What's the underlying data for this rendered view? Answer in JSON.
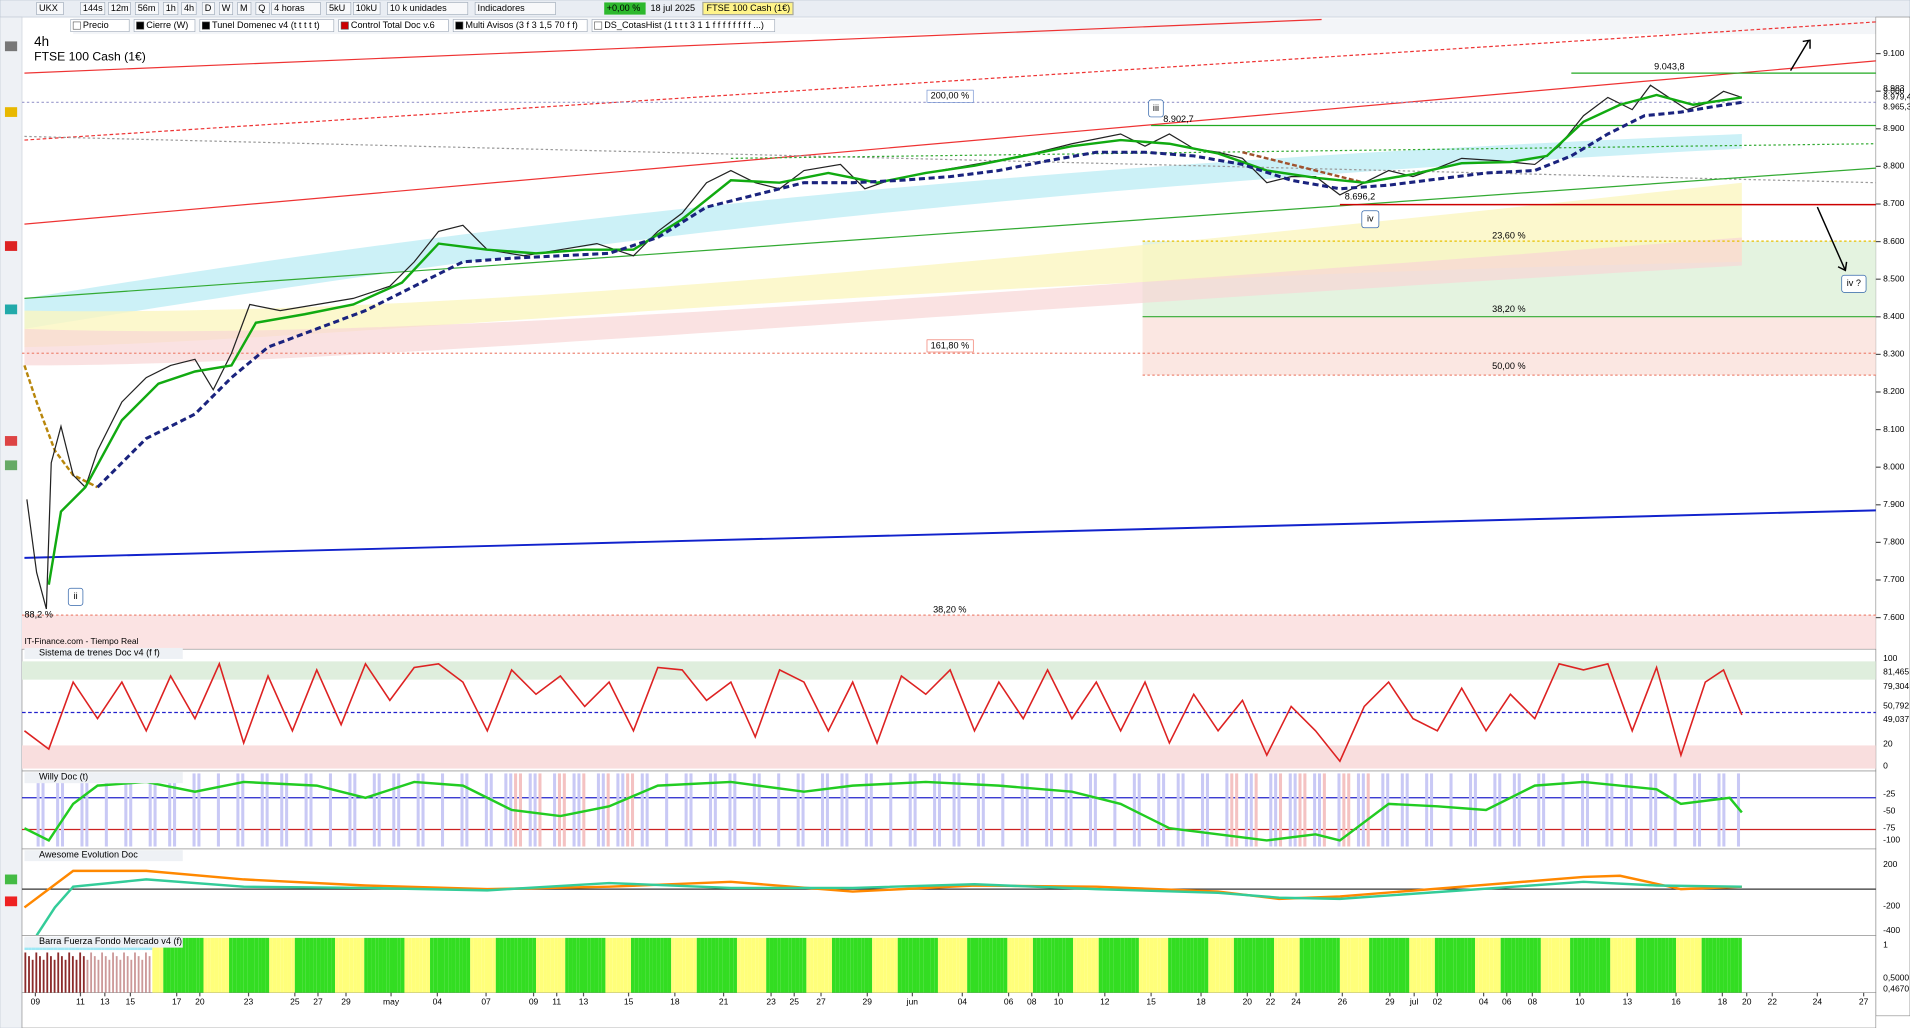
{
  "toolbar": {
    "symbol": "UKX",
    "timeframes": [
      "144s",
      "12m",
      "56m",
      "1h",
      "4h",
      "D",
      "W",
      "M",
      "Q"
    ],
    "period": "4 horas",
    "units": [
      "5kU",
      "10kU"
    ],
    "unit_select": "10 k unidades",
    "indicators": "Indicadores",
    "change": "+0,00 %",
    "date": "18 jul 2025",
    "instrument": "FTSE 100 Cash (1€)"
  },
  "indicator_tabs": [
    "Precio",
    "Cierre (W)",
    "Tunel Domenec v4 (t t t t t)",
    "Control Total Doc v.6",
    "Multi Avisos (3 f 3 1,5 70 f f)",
    "DS_CotasHist (1 t t t 3 1 1 f f f f f f f f ...)"
  ],
  "chart": {
    "timeframe": "4h",
    "title": "FTSE 100 Cash (1€)",
    "source": "IT-Finance.com - Tiempo Real",
    "price_axis": [
      "9.100",
      "9.000",
      "8.900",
      "8.800",
      "8.700",
      "8.600",
      "8.500",
      "8.400",
      "8.300",
      "8.200",
      "8.100",
      "8.000",
      "7.900",
      "7.800",
      "7.700",
      "7.600"
    ],
    "price_labels": [
      "8.983",
      "8.979,4",
      "8.965,3"
    ],
    "fib_labels": [
      "200,00 %",
      "161,80 %",
      "23,60 %",
      "38,20 %",
      "50,00 %",
      "38,20 %",
      "88,2 %"
    ],
    "value_labels": [
      "9.043,8",
      "8.902,7",
      "8.696,2"
    ],
    "waves": [
      "iii",
      "iv",
      "ii",
      "iv ?"
    ],
    "dates": [
      "09",
      "11",
      "13",
      "15",
      "17",
      "20",
      "23",
      "25",
      "27",
      "29",
      "may",
      "04",
      "07",
      "09",
      "11",
      "13",
      "15",
      "18",
      "21",
      "23",
      "25",
      "27",
      "29",
      "jun",
      "04",
      "06",
      "08",
      "10",
      "12",
      "15",
      "18",
      "20",
      "22",
      "24",
      "26",
      "29",
      "jul",
      "02",
      "04",
      "06",
      "08",
      "10",
      "13",
      "16",
      "18",
      "20",
      "22",
      "24",
      "27"
    ]
  },
  "panels": [
    {
      "title": "Sistema de trenes Doc v4 (f f)",
      "axis": [
        "100",
        "81,465",
        "79,304",
        "50,792",
        "49,037",
        "20",
        "0"
      ]
    },
    {
      "title": "Willy Doc (t)",
      "axis": [
        "-25",
        "-50",
        "-75",
        "-100"
      ]
    },
    {
      "title": "Awesome Evolution Doc",
      "axis": [
        "200",
        "-200",
        "-400"
      ]
    },
    {
      "title": "Barra Fuerza Fondo Mercado v4 (f)",
      "axis": [
        "1",
        "0,5000",
        "0,4670"
      ]
    }
  ]
}
